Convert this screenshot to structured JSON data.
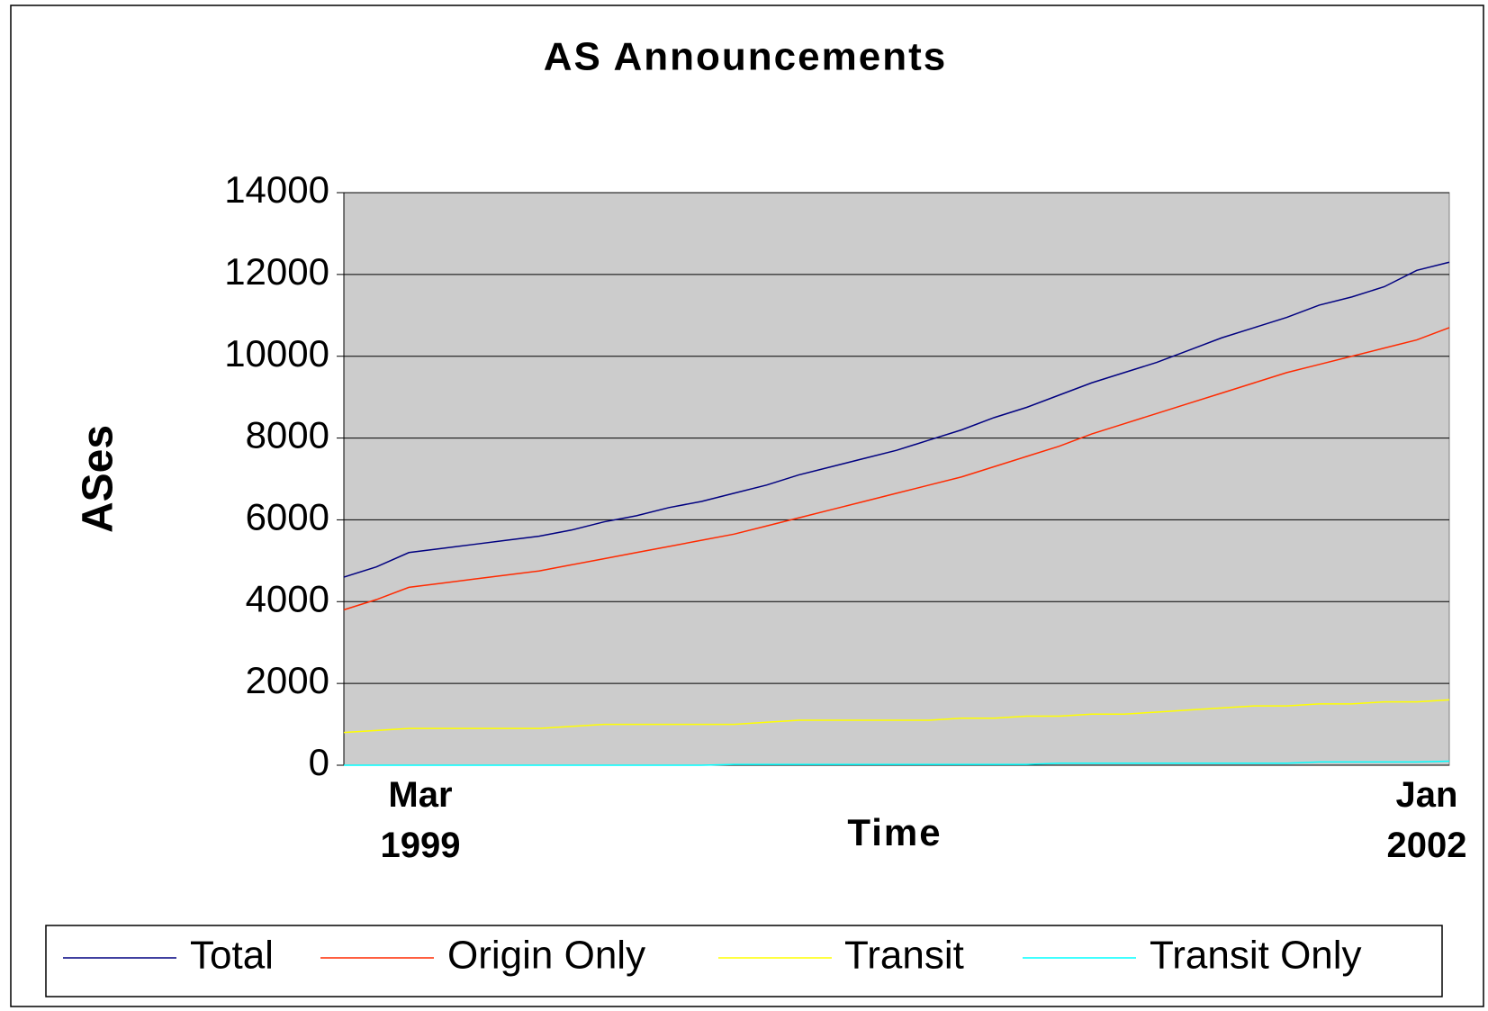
{
  "chart_data": {
    "type": "line",
    "title": "AS Announcements",
    "x_label": "Time",
    "y_label": "ASes",
    "categories": [
      "Mar\n1999",
      null,
      null,
      null,
      null,
      null,
      null,
      null,
      null,
      null,
      null,
      null,
      null,
      null,
      null,
      null,
      null,
      null,
      null,
      null,
      null,
      null,
      null,
      null,
      null,
      null,
      null,
      null,
      null,
      null,
      null,
      null,
      null,
      null,
      "Jan\n2002"
    ],
    "series": [
      {
        "name": "Total",
        "color": "#000080",
        "values": [
          4600,
          4850,
          5200,
          5300,
          5400,
          5500,
          5600,
          5750,
          5950,
          6100,
          6300,
          6450,
          6650,
          6850,
          7100,
          7300,
          7500,
          7700,
          7950,
          8200,
          8500,
          8750,
          9050,
          9350,
          9600,
          9850,
          10150,
          10450,
          10700,
          10950,
          11250,
          11450,
          11700,
          12100,
          12300
        ]
      },
      {
        "name": "Origin Only",
        "color": "#ff2a00",
        "values": [
          3800,
          4050,
          4350,
          4450,
          4550,
          4650,
          4750,
          4900,
          5050,
          5200,
          5350,
          5500,
          5650,
          5850,
          6050,
          6250,
          6450,
          6650,
          6850,
          7050,
          7300,
          7550,
          7800,
          8100,
          8350,
          8600,
          8850,
          9100,
          9350,
          9600,
          9800,
          10000,
          10200,
          10400,
          10700
        ]
      },
      {
        "name": "Transit",
        "color": "#ffff00",
        "values": [
          800,
          850,
          900,
          900,
          900,
          900,
          900,
          950,
          1000,
          1000,
          1000,
          1000,
          1000,
          1050,
          1100,
          1100,
          1100,
          1100,
          1100,
          1150,
          1150,
          1200,
          1200,
          1250,
          1250,
          1300,
          1350,
          1400,
          1450,
          1450,
          1500,
          1500,
          1550,
          1550,
          1600
        ]
      },
      {
        "name": "Transit Only",
        "color": "#00ffff",
        "values": [
          0,
          0,
          0,
          0,
          0,
          0,
          0,
          0,
          0,
          0,
          0,
          0,
          20,
          20,
          20,
          20,
          20,
          20,
          20,
          20,
          20,
          20,
          50,
          50,
          50,
          50,
          50,
          50,
          50,
          50,
          80,
          80,
          80,
          80,
          100
        ]
      }
    ],
    "ylim": [
      0,
      14000
    ],
    "yticks": [
      0,
      2000,
      4000,
      6000,
      8000,
      10000,
      12000,
      14000
    ],
    "grid": true
  }
}
